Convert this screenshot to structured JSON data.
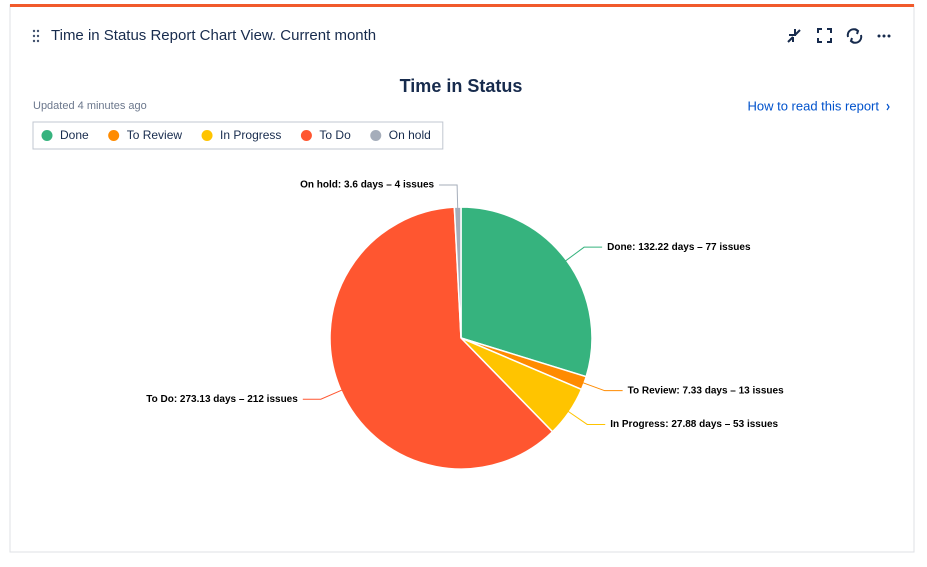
{
  "gadget": {
    "title": "Time in Status Report Chart View. Current month",
    "updated": "Updated 4 minutes ago",
    "help_link": "How to read this report"
  },
  "chart_data": {
    "type": "pie",
    "title": "Time in Status",
    "categories": [
      "Done",
      "To Review",
      "In Progress",
      "To Do",
      "On hold"
    ],
    "values": [
      132.22,
      7.33,
      27.88,
      273.13,
      3.6
    ],
    "value_labels": [
      "Done: 132.22 days – 77 issues",
      "To Review: 7.33 days – 13 issues",
      "In Progress: 27.88 days – 53 issues",
      "To Do: 273.13 days – 212 issues",
      "On hold: 3.6 days – 4 issues"
    ],
    "colors": [
      "#36b37e",
      "#ff8b00",
      "#ffc400",
      "#ff5630",
      "#a5adba"
    ]
  }
}
